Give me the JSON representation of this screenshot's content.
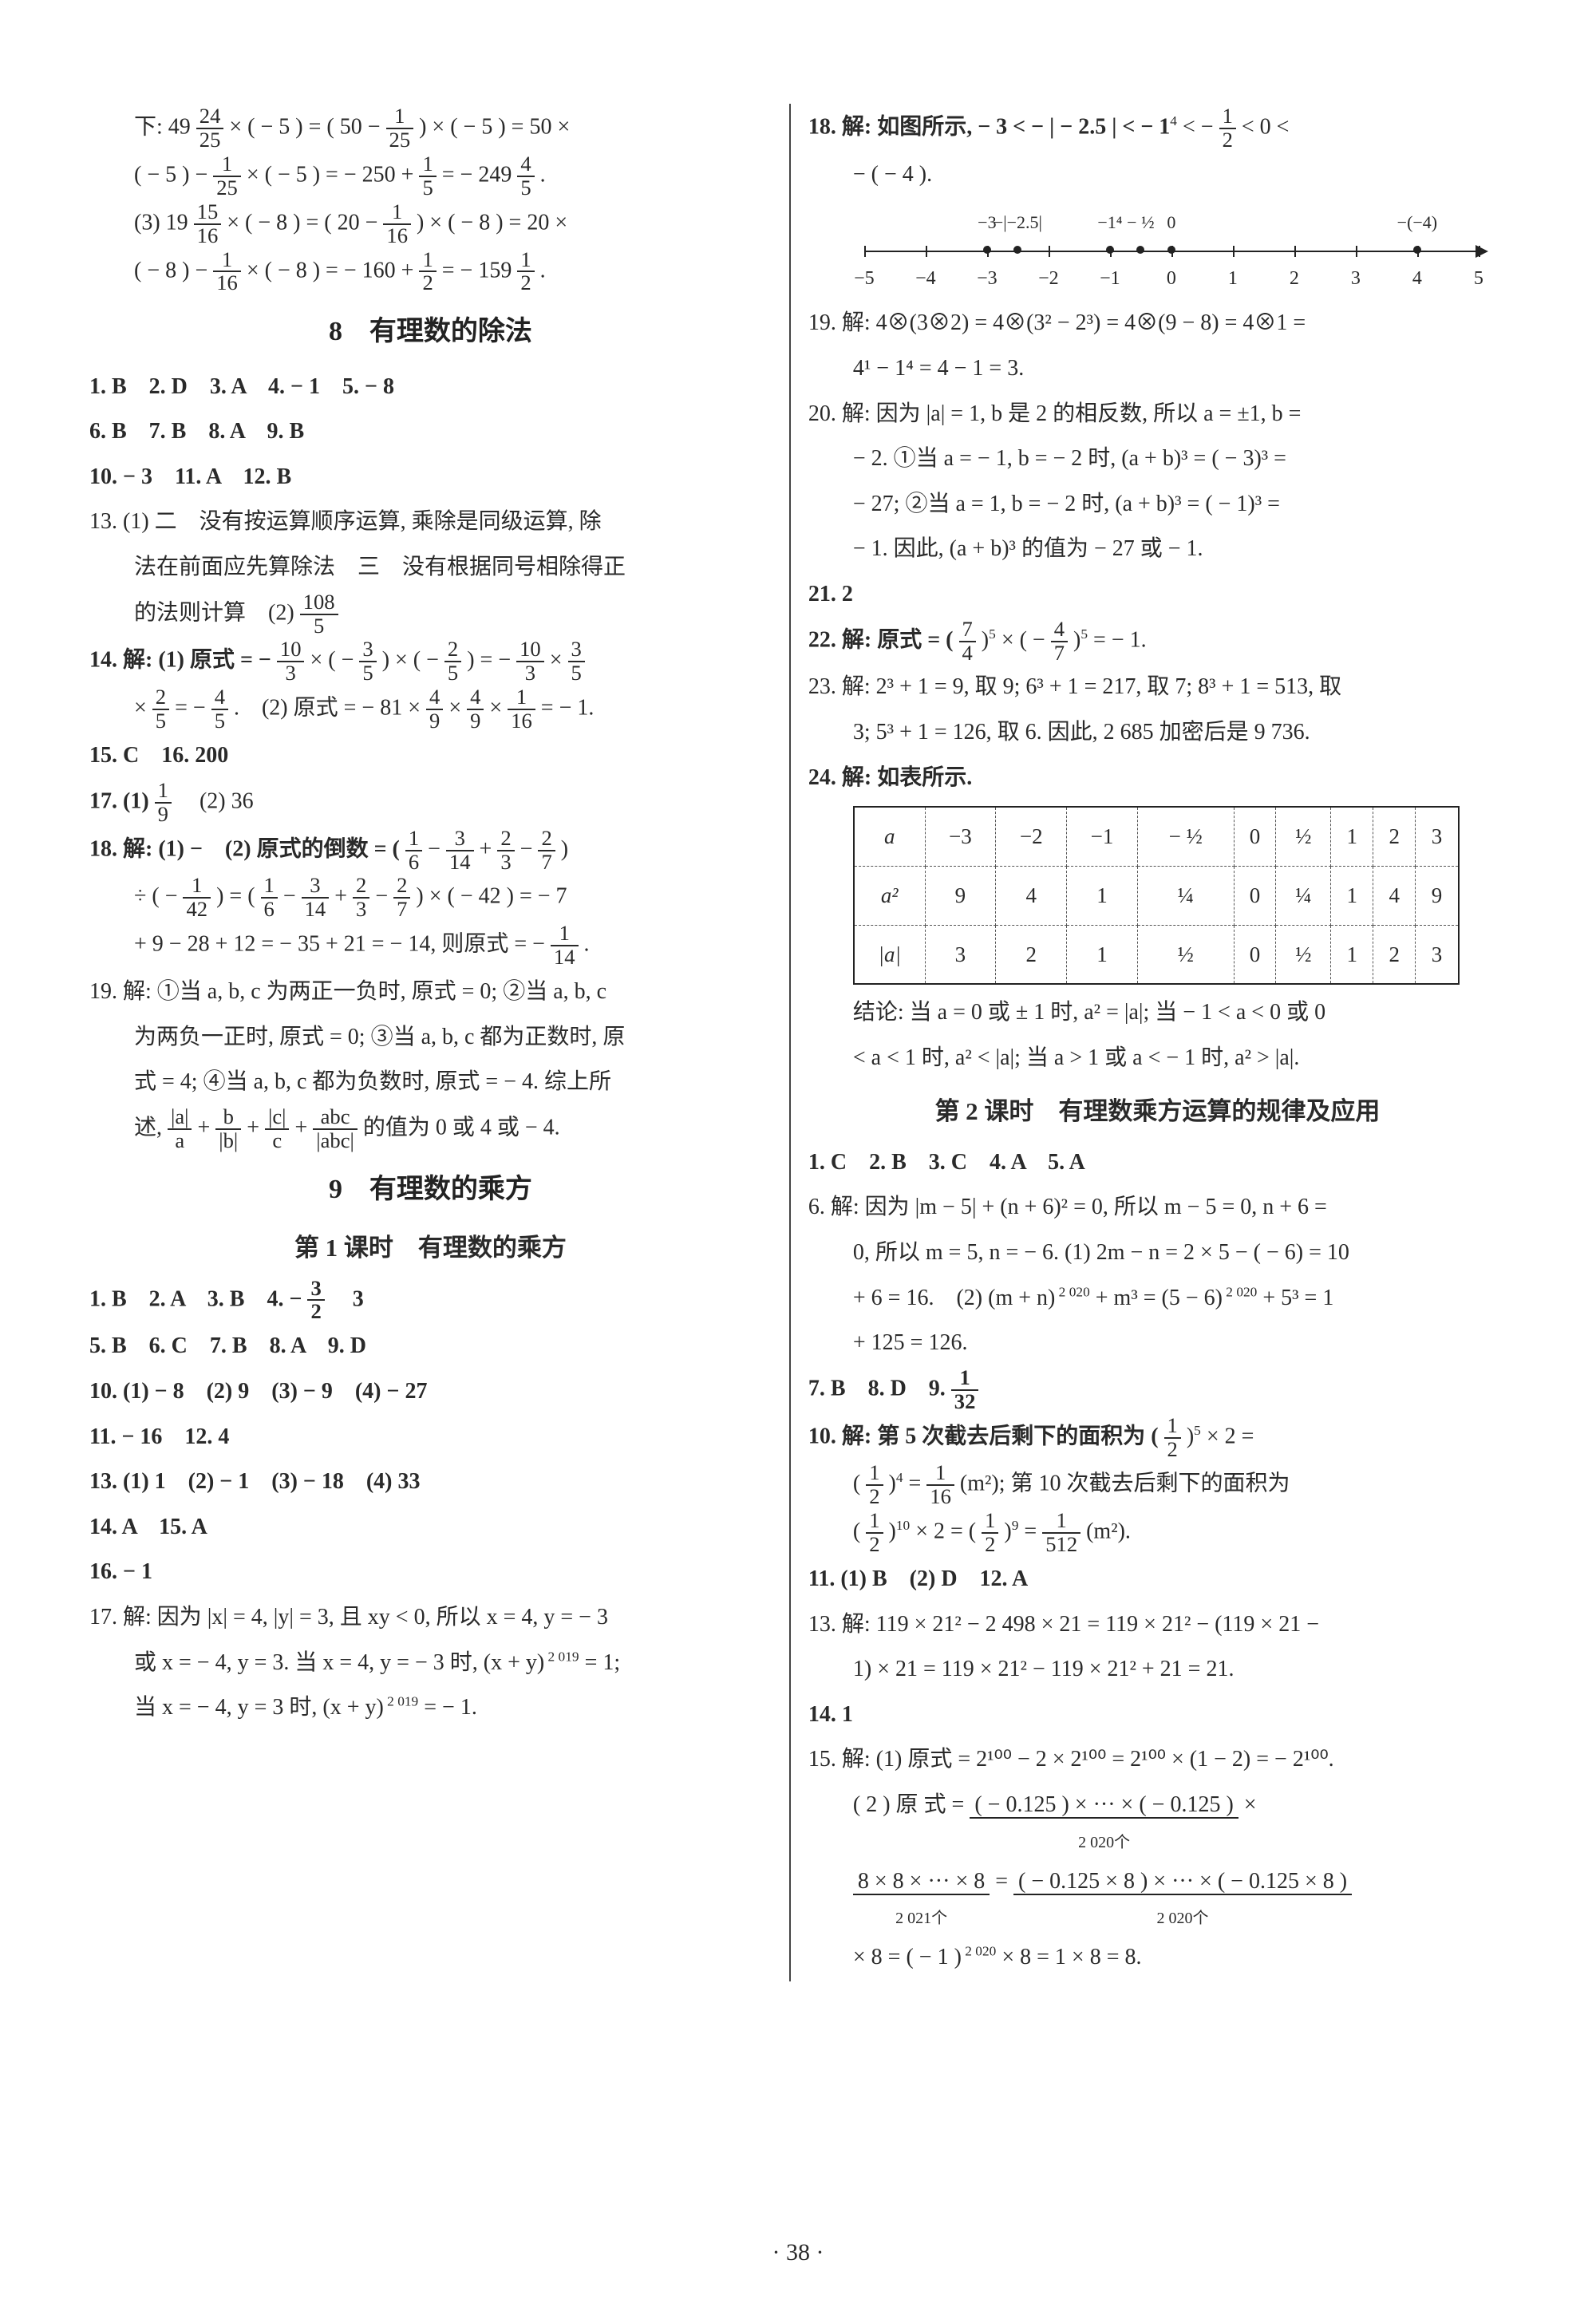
{
  "page_number": "· 38 ·",
  "left": {
    "l1": "下: 49",
    "f1n": "24",
    "f1d": "25",
    "l1b": " × ( − 5 ) = ( 50 − ",
    "f2n": "1",
    "f2d": "25",
    "l1c": " ) × ( − 5 ) = 50 ×",
    "l2a": "( − 5 ) − ",
    "l2b": " × ( − 5 ) = − 250 + ",
    "f3n": "1",
    "f3d": "5",
    "l2c": " = − 249 ",
    "f4n": "4",
    "f4d": "5",
    "l2d": ".",
    "l3a": "(3) 19 ",
    "f5n": "15",
    "f5d": "16",
    "l3b": " × ( − 8 ) = ( 20 − ",
    "f6n": "1",
    "f6d": "16",
    "l3c": " ) × ( − 8 ) = 20 ×",
    "l4a": "( − 8 ) − ",
    "l4b": " × ( − 8 ) = − 160 + ",
    "f7n": "1",
    "f7d": "2",
    "l4c": " = − 159 ",
    "l4d": ".",
    "sec8": "8　有理数的除法",
    "row8a": "1. B　2. D　3. A　4. − 1　5. − 8",
    "row8b": "6. B　7. B　8. A　9. B",
    "row8c": "10. − 3　11. A　12. B",
    "q13a": "13. (1) 二　没有按运算顺序运算, 乘除是同级运算, 除",
    "q13b": "法在前面应先算除法　三　没有根据同号相除得正",
    "q13c": "的法则计算　(2) ",
    "f108n": "108",
    "f108d": "5",
    "q14a": "14. 解: (1) 原式 = − ",
    "f10n": "10",
    "f10d": "3",
    "q14b": " × ( − ",
    "f35n": "3",
    "f35d": "5",
    "q14c": " ) × ( − ",
    "f25n": "2",
    "f25d": "5",
    "q14d": " ) = − ",
    "q14e": " × ",
    "l14f": "× ",
    "l14g": " = − ",
    "f45n": "4",
    "f45d": "5",
    "l14h": ".　(2) 原式 = − 81 × ",
    "f49n": "4",
    "f49d": "9",
    "l14i": " × ",
    "l14j": " × ",
    "f116n": "1",
    "f116d": "16",
    "l14k": " = − 1.",
    "row15": "15. C　16. 200",
    "row17": "17. (1) ",
    "f19n": "1",
    "f19d": "9",
    "row17b": "　(2) 36",
    "q18a": "18. 解: (1) −　(2) 原式的倒数 = ( ",
    "f16n": "1",
    "f16d": "6",
    "q18b": " − ",
    "f314n": "3",
    "f314d": "14",
    "q18c": " + ",
    "f23n": "2",
    "f23d": "3",
    "q18d": " − ",
    "f27n": "2",
    "f27d": "7",
    "q18e": " )",
    "q18f": "÷ ( − ",
    "f142n": "1",
    "f142d": "42",
    "q18g": " ) = ( ",
    "q18h": " − ",
    "q18i": " + ",
    "q18j": " − ",
    "q18k": " ) × ( − 42 ) = − 7",
    "q18l": "+ 9 − 28 + 12 = − 35 + 21 = − 14, 则原式 = − ",
    "f114n": "1",
    "f114d": "14",
    "q18m": ".",
    "q19a": "19. 解: ①当 a, b, c 为两正一负时, 原式 = 0; ②当 a, b, c",
    "q19b": "为两负一正时, 原式 = 0; ③当 a, b, c 都为正数时, 原",
    "q19c": "式 = 4; ④当 a, b, c 都为负数时, 原式 = − 4. 综上所",
    "q19d": "述, ",
    "fr1n": "|a|",
    "fr1d": "a",
    "q19e": " + ",
    "fr2n": "b",
    "fr2d": "|b|",
    "q19f": " + ",
    "fr3n": "|c|",
    "fr3d": "c",
    "q19g": " + ",
    "fr4n": "abc",
    "fr4d": "|abc|",
    "q19h": " 的值为 0 或 4 或 − 4.",
    "sec9": "9　有理数的乘方",
    "sec9sub": "第 1 课时　有理数的乘方",
    "r9a": "1. B　2. A　3. B　4. − ",
    "f32n": "3",
    "f32d": "2",
    "r9ab": "　3",
    "r9b": "5. B　6. C　7. B　8. A　9. D",
    "r9c": "10. (1) − 8　(2) 9　(3) − 9　(4) − 27",
    "r9d": "11. − 16　12. 4",
    "r9e": "13. (1) 1　(2) − 1　(3) − 18　(4) 33",
    "r9f": "14. A　15. A",
    "r9g": "16. − 1",
    "r9h": "17. 解: 因为 |x| = 4, |y| = 3, 且 xy < 0, 所以 x = 4, y = − 3",
    "r9i": "或 x = − 4, y = 3. 当 x = 4, y = − 3 时, (x + y)",
    "sup2019": " 2 019",
    "r9j": " = 1;",
    "r9k": "当 x = − 4, y = 3 时, (x + y)",
    "r9l": " = − 1."
  },
  "right": {
    "r18a": "18. 解: 如图所示, − 3 < − | − 2.5 | < − 1",
    "sup4": "4",
    "r18b": " < − ",
    "f12n": "1",
    "f12d": "2",
    "r18c": " < 0 <",
    "r18d": "− ( − 4 ).",
    "numline": {
      "ticks": [
        -5,
        -4,
        -3,
        -2,
        -1,
        0,
        1,
        2,
        3,
        4,
        5
      ],
      "top_labels": [
        {
          "x": -3,
          "t": "−3"
        },
        {
          "x": -2.5,
          "t": "−|−2.5|"
        },
        {
          "x": -1,
          "t": "−1⁴"
        },
        {
          "x": -0.5,
          "t": "− ½"
        },
        {
          "x": 0,
          "t": "0"
        },
        {
          "x": 4,
          "t": "−(−4)"
        }
      ],
      "dots": [
        -3,
        -2.5,
        -1,
        -0.5,
        0,
        4
      ]
    },
    "r19a": "19. 解: 4⊗(3⊗2) = 4⊗(3² − 2³) = 4⊗(9 − 8) = 4⊗1 =",
    "r19b": "4¹ − 1⁴ = 4 − 1 = 3.",
    "r20a": "20. 解: 因为 |a| = 1, b 是 2 的相反数, 所以 a = ±1, b =",
    "r20b": "− 2. ①当 a = − 1, b = − 2 时, (a + b)³ = ( − 3)³ =",
    "r20c": "− 27; ②当 a = 1, b = − 2 时, (a + b)³ = ( − 1)³ =",
    "r20d": "− 1. 因此, (a + b)³ 的值为 − 27 或 − 1.",
    "r21": "21. 2",
    "r22a": "22. 解: 原式 = ( ",
    "f74n": "7",
    "f74d": "4",
    "r22b": " )",
    "sup5": "5",
    "r22c": " × ( − ",
    "f47n": "4",
    "f47d": "7",
    "r22d": " )",
    "r22e": " = − 1.",
    "r23a": "23. 解: 2³ + 1 = 9, 取 9; 6³ + 1 = 217, 取 7; 8³ + 1 = 513, 取",
    "r23b": "3; 5³ + 1 = 126, 取 6. 因此, 2 685 加密后是 9 736.",
    "r24": "24. 解: 如表所示.",
    "table": {
      "h": [
        "a",
        "−3",
        "−2",
        "−1",
        "− ½",
        "0",
        "½",
        "1",
        "2",
        "3"
      ],
      "r1": [
        "a²",
        "9",
        "4",
        "1",
        "¼",
        "0",
        "¼",
        "1",
        "4",
        "9"
      ],
      "r2": [
        "|a|",
        "3",
        "2",
        "1",
        "½",
        "0",
        "½",
        "1",
        "2",
        "3"
      ]
    },
    "r24c": "结论: 当 a = 0 或 ± 1 时, a² = |a|; 当 − 1 < a < 0 或 0",
    "r24d": "< a < 1 时, a² < |a|; 当 a > 1 或 a < − 1 时, a² > |a|.",
    "sec2": "第 2 课时　有理数乘方运算的规律及应用",
    "s2a": "1. C　2. B　3. C　4. A　5. A",
    "s2b": "6. 解: 因为 |m − 5| + (n + 6)² = 0, 所以 m − 5 = 0, n + 6 =",
    "s2c": "0, 所以 m = 5, n = − 6. (1) 2m − n = 2 × 5 − ( − 6) = 10",
    "s2d": "+ 6 = 16.　(2) (m + n)",
    "sup2020": " 2 020",
    "s2e": " + m³ = (5 − 6)",
    "s2f": " + 5³ = 1",
    "s2g": "+ 125 = 126.",
    "s2h": "7. B　8. D　9. ",
    "f132n": "1",
    "f132d": "32",
    "s2i": "10. 解: 第 5 次截去后剩下的面积为 ( ",
    "f12bn": "1",
    "f12bd": "2",
    "s2j": " )",
    "s2k": " × 2 =",
    "s2l": "( ",
    "s2m": " )",
    "s2n": " = ",
    "f116bn": "1",
    "f116bd": "16",
    "s2o": " (m²); 第 10 次截去后剩下的面积为",
    "s2p": "( ",
    "s2q": " )",
    "sup10": "10",
    "s2r": " × 2 = ( ",
    "s2s": " )",
    "sup9": "9",
    "s2t": " = ",
    "f1512n": "1",
    "f1512d": "512",
    "s2u": " (m²).",
    "s11": "11. (1) B　(2) D　12. A",
    "s13a": "13. 解: 119 × 21² − 2 498 × 21 = 119 × 21² − (119 × 21 −",
    "s13b": "1) × 21 = 119 × 21² − 119 × 21² + 21 = 21.",
    "s14": "14. 1",
    "s15a": "15. 解: (1) 原式 = 2¹⁰⁰ − 2 × 2¹⁰⁰ = 2¹⁰⁰ × (1 − 2) = − 2¹⁰⁰.",
    "s15b": "( 2 )  原 式 = ",
    "ub1t": "( − 0.125 ) × ··· × ( − 0.125 )",
    "ub1b": "2 020个",
    "s15c": " ×",
    "ub2t": "8 × 8 × ··· × 8",
    "ub2b": "2 021个",
    "s15d": " = ",
    "ub3t": "( − 0.125 × 8 ) × ··· × ( − 0.125 × 8 )",
    "ub3b": "2 020个",
    "s15e": "× 8 = ( − 1 )",
    "s15f": " × 8 = 1 × 8 = 8."
  }
}
